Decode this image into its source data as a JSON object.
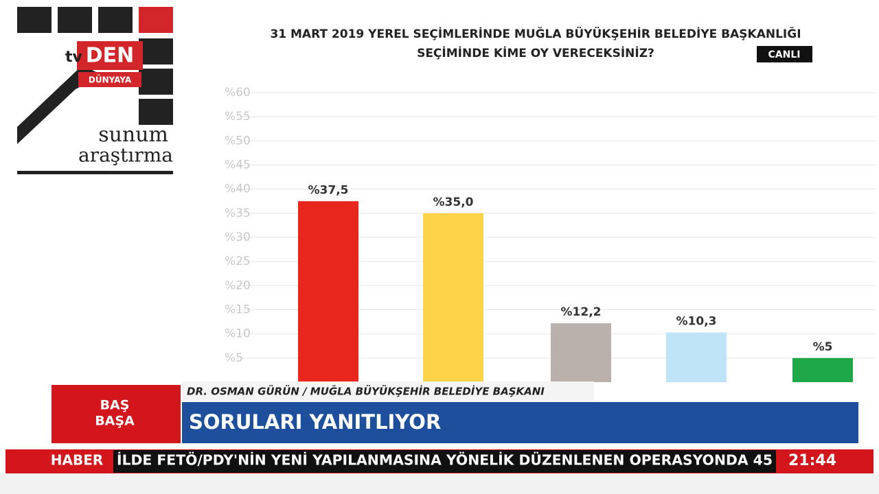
{
  "chart_data": {
    "type": "bar",
    "title": [
      "31 MART 2019 YEREL SEÇİMLERİNDE MUĞLA BÜYÜKŞEHİR BELEDİYE BAŞKANLIĞI",
      "SEÇİMİNDE KİME OY VERECEKSİNİZ?"
    ],
    "badge": "CANLI",
    "values": [
      37.5,
      35.0,
      12.2,
      10.3,
      5
    ],
    "value_labels": [
      "%37,5",
      "%35,0",
      "%12,2",
      "%10,3",
      "%5"
    ],
    "colors": [
      "#e8261d",
      "#fdd34a",
      "#bab0ac",
      "#bfe4f7",
      "#1fa84a"
    ],
    "ylim": [
      0,
      60
    ],
    "yticks": [
      {
        "value": 5,
        "label": "%5"
      },
      {
        "value": 10,
        "label": "%10"
      },
      {
        "value": 15,
        "label": "%15"
      },
      {
        "value": 20,
        "label": "%20"
      },
      {
        "value": 25,
        "label": "%25"
      },
      {
        "value": 30,
        "label": "%30"
      },
      {
        "value": 35,
        "label": "%35"
      },
      {
        "value": 40,
        "label": "%40"
      },
      {
        "value": 45,
        "label": "%45"
      },
      {
        "value": 50,
        "label": "%50"
      },
      {
        "value": 55,
        "label": "%55"
      },
      {
        "value": 60,
        "label": "%60"
      }
    ],
    "grid": true
  },
  "logo": {
    "tv": "tv",
    "den": "DEN",
    "dunyaya": "DÜNYAYA",
    "sunum": "sunum",
    "arastirma": "araştırma"
  },
  "lower_third": {
    "program": [
      "BAŞ",
      "BAŞA"
    ],
    "guest": "DR. OSMAN GÜRÜN / MUĞLA BÜYÜKŞEHİR BELEDİYE BAŞKANI",
    "headline": "SORULARI YANITLIYOR"
  },
  "ticker": {
    "label": "HABER",
    "text": "İLDE FETÖ/PDY'NİN YENİ YAPILANMASINA YÖNELİK DÜZENLENEN OPERASYONDA 45",
    "time": "21:44"
  }
}
